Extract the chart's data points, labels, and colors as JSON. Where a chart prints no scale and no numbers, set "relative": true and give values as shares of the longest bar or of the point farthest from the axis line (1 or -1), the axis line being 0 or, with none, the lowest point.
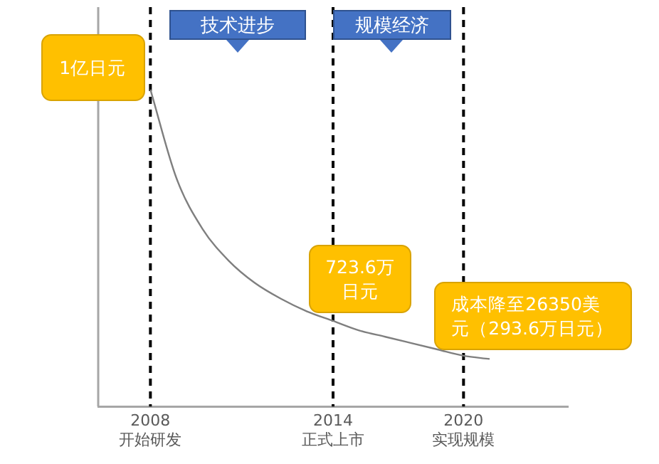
{
  "chart_data": {
    "type": "line",
    "relative": true,
    "grid": false,
    "legend": false,
    "line_style": "solid",
    "categories": [
      null,
      null,
      "2008\n开始研发",
      null,
      null,
      null,
      null,
      null,
      null,
      "2014\n正式上市",
      null,
      null,
      null,
      null,
      "2020\n实现规模",
      null,
      null,
      null,
      null
    ],
    "series": [
      {
        "color": "#7f7f7f",
        "values": [
          null,
          null,
          1.0,
          0.72,
          0.56,
          0.46,
          0.39,
          0.34,
          0.3,
          0.27,
          0.24,
          0.22,
          0.2,
          0.18,
          0.16,
          0.15,
          null,
          null,
          null
        ]
      }
    ],
    "ref_lines": [
      {
        "axis": "x",
        "value": "2008\n开始研发",
        "label": null,
        "color": "#000000",
        "line_style": "dashed"
      },
      {
        "axis": "x",
        "value": "2014\n正式上市",
        "label": null,
        "color": "#000000",
        "line_style": "dashed"
      },
      {
        "axis": "x",
        "value": "2020\n实现规模",
        "label": null,
        "color": "#000000",
        "line_style": "dashed"
      }
    ],
    "annotations": [
      "技术进步",
      "规模经济",
      {
        "text": "1亿日元",
        "x": "2008\n开始研发",
        "y": 1.0
      },
      {
        "text": "723.6万日元",
        "x": "2014\n正式上市",
        "y": 0.27
      },
      {
        "text": "成本降至26350美元（293.6万日元）",
        "x": "2020\n实现规模",
        "y": 0.16
      }
    ]
  }
}
